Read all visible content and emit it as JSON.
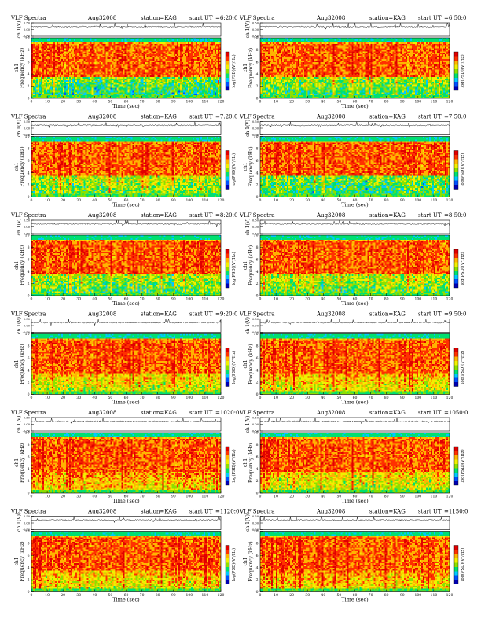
{
  "colors": {
    "scale": [
      "#0000b4",
      "#0050ff",
      "#00c8ff",
      "#00e070",
      "#8ce000",
      "#f0f000",
      "#ffb400",
      "#ff3000",
      "#e00000"
    ],
    "trace": "#000000",
    "frame": "#000000",
    "background": "#ffffff"
  },
  "common": {
    "product": "VLF Spectra",
    "date": "Aug32008",
    "station": "station=KAG",
    "ut_prefix": "start UT",
    "trace_ylabel": "ch 1(V)",
    "spec_ylabel_top": "ch1",
    "spec_ylabel": "Frequency (kHz)",
    "colorbar_label": "log(PSD)(V²/Hz)",
    "xlabel": "Time (sec)"
  },
  "chart_data": [
    {
      "type": "heatmap",
      "panel": 1,
      "title_ut": "=6:20:0",
      "xlim": [
        0,
        120
      ],
      "xticks": [
        0,
        10,
        20,
        30,
        40,
        50,
        60,
        70,
        80,
        90,
        100,
        110,
        120
      ],
      "ylim": [
        0,
        10
      ],
      "yticks": [
        0,
        2,
        4,
        6,
        8,
        10
      ],
      "trace_ylim": [
        -0.5,
        0.5
      ],
      "trace_ticks": [
        "0.50",
        "0.00",
        "-0.50"
      ],
      "grid": false,
      "legend": "colorbar-right"
    },
    {
      "type": "heatmap",
      "panel": 2,
      "title_ut": "=6:50:0",
      "xlim": [
        0,
        120
      ],
      "xticks": [
        0,
        10,
        20,
        30,
        40,
        50,
        60,
        70,
        80,
        90,
        100,
        110,
        120
      ],
      "ylim": [
        0,
        10
      ],
      "yticks": [
        0,
        2,
        4,
        6,
        8,
        10
      ],
      "trace_ylim": [
        -0.5,
        0.5
      ],
      "trace_ticks": [
        "0.50",
        "0.00",
        "-0.50"
      ],
      "grid": false,
      "legend": "colorbar-right"
    },
    {
      "type": "heatmap",
      "panel": 3,
      "title_ut": "=7:20:0",
      "xlim": [
        0,
        120
      ],
      "xticks": [
        0,
        10,
        20,
        30,
        40,
        50,
        60,
        70,
        80,
        90,
        100,
        110,
        120
      ],
      "ylim": [
        0,
        10
      ],
      "yticks": [
        0,
        2,
        4,
        6,
        8,
        10
      ],
      "trace_ylim": [
        -0.5,
        0.5
      ],
      "trace_ticks": [
        "0.50",
        "0.00",
        "-0.50"
      ],
      "grid": false,
      "legend": "colorbar-right"
    },
    {
      "type": "heatmap",
      "panel": 4,
      "title_ut": "=7:50:0",
      "xlim": [
        0,
        120
      ],
      "xticks": [
        0,
        10,
        20,
        30,
        40,
        50,
        60,
        70,
        80,
        90,
        100,
        110,
        120
      ],
      "ylim": [
        0,
        10
      ],
      "yticks": [
        0,
        2,
        4,
        6,
        8,
        10
      ],
      "trace_ylim": [
        -0.5,
        0.5
      ],
      "trace_ticks": [
        "0.50",
        "0.00",
        "-0.50"
      ],
      "grid": false,
      "legend": "colorbar-right"
    },
    {
      "type": "heatmap",
      "panel": 5,
      "title_ut": "=8:20:0",
      "xlim": [
        0,
        120
      ],
      "xticks": [
        0,
        10,
        20,
        30,
        40,
        50,
        60,
        70,
        80,
        90,
        100,
        110,
        120
      ],
      "ylim": [
        0,
        10
      ],
      "yticks": [
        0,
        2,
        4,
        6,
        8,
        10
      ],
      "trace_ylim": [
        -0.5,
        0.5
      ],
      "trace_ticks": [
        "0.50",
        "0.00",
        "-0.50"
      ],
      "grid": false,
      "legend": "colorbar-right"
    },
    {
      "type": "heatmap",
      "panel": 6,
      "title_ut": "=8:50:0",
      "xlim": [
        0,
        120
      ],
      "xticks": [
        0,
        10,
        20,
        30,
        40,
        50,
        60,
        70,
        80,
        90,
        100,
        110,
        120
      ],
      "ylim": [
        0,
        10
      ],
      "yticks": [
        0,
        2,
        4,
        6,
        8,
        10
      ],
      "trace_ylim": [
        -0.5,
        0.5
      ],
      "trace_ticks": [
        "0.50",
        "0.00",
        "-0.50"
      ],
      "grid": false,
      "legend": "colorbar-right"
    },
    {
      "type": "heatmap",
      "panel": 7,
      "title_ut": "=9:20:0",
      "xlim": [
        0,
        120
      ],
      "xticks": [
        0,
        10,
        20,
        30,
        40,
        50,
        60,
        70,
        80,
        90,
        100,
        110,
        120
      ],
      "ylim": [
        0,
        10
      ],
      "yticks": [
        0,
        2,
        4,
        6,
        8,
        10
      ],
      "trace_ylim": [
        -0.5,
        0.5
      ],
      "trace_ticks": [
        "0.50",
        "0.00",
        "-0.50"
      ],
      "grid": false,
      "legend": "colorbar-right"
    },
    {
      "type": "heatmap",
      "panel": 8,
      "title_ut": "=9:50:0",
      "xlim": [
        0,
        120
      ],
      "xticks": [
        0,
        10,
        20,
        30,
        40,
        50,
        60,
        70,
        80,
        90,
        100,
        110,
        120
      ],
      "ylim": [
        0,
        10
      ],
      "yticks": [
        0,
        2,
        4,
        6,
        8,
        10
      ],
      "trace_ylim": [
        -0.5,
        0.5
      ],
      "trace_ticks": [
        "0.50",
        "0.00",
        "-0.50"
      ],
      "grid": false,
      "legend": "colorbar-right"
    },
    {
      "type": "heatmap",
      "panel": 9,
      "title_ut": "=1020:0",
      "xlim": [
        0,
        120
      ],
      "xticks": [
        0,
        10,
        20,
        30,
        40,
        50,
        60,
        70,
        80,
        90,
        100,
        110,
        120
      ],
      "ylim": [
        0,
        10
      ],
      "yticks": [
        0,
        2,
        4,
        6,
        8,
        10
      ],
      "trace_ylim": [
        -0.5,
        0.5
      ],
      "trace_ticks": [
        "0.50",
        "0.00",
        "-0.50"
      ],
      "grid": false,
      "legend": "colorbar-right"
    },
    {
      "type": "heatmap",
      "panel": 10,
      "title_ut": "=1050:0",
      "xlim": [
        0,
        120
      ],
      "xticks": [
        0,
        10,
        20,
        30,
        40,
        50,
        60,
        70,
        80,
        90,
        100,
        110,
        120
      ],
      "ylim": [
        0,
        10
      ],
      "yticks": [
        0,
        2,
        4,
        6,
        8,
        10
      ],
      "trace_ylim": [
        -0.5,
        0.5
      ],
      "trace_ticks": [
        "0.50",
        "0.00",
        "-0.50"
      ],
      "grid": false,
      "legend": "colorbar-right"
    },
    {
      "type": "heatmap",
      "panel": 11,
      "title_ut": "=1120:0",
      "xlim": [
        0,
        120
      ],
      "xticks": [
        0,
        10,
        20,
        30,
        40,
        50,
        60,
        70,
        80,
        90,
        100,
        110,
        120
      ],
      "ylim": [
        0,
        10
      ],
      "yticks": [
        0,
        2,
        4,
        6,
        8,
        10
      ],
      "trace_ylim": [
        -0.5,
        0.5
      ],
      "trace_ticks": [
        "0.50",
        "0.00",
        "-0.50"
      ],
      "grid": false,
      "legend": "colorbar-right"
    },
    {
      "type": "heatmap",
      "panel": 12,
      "title_ut": "=1150:0",
      "xlim": [
        0,
        120
      ],
      "xticks": [
        0,
        10,
        20,
        30,
        40,
        50,
        60,
        70,
        80,
        90,
        100,
        110,
        120
      ],
      "ylim": [
        0,
        10
      ],
      "yticks": [
        0,
        2,
        4,
        6,
        8,
        10
      ],
      "trace_ylim": [
        -0.5,
        0.5
      ],
      "trace_ticks": [
        "0.50",
        "0.00",
        "-0.50"
      ],
      "grid": false,
      "legend": "colorbar-right"
    }
  ]
}
